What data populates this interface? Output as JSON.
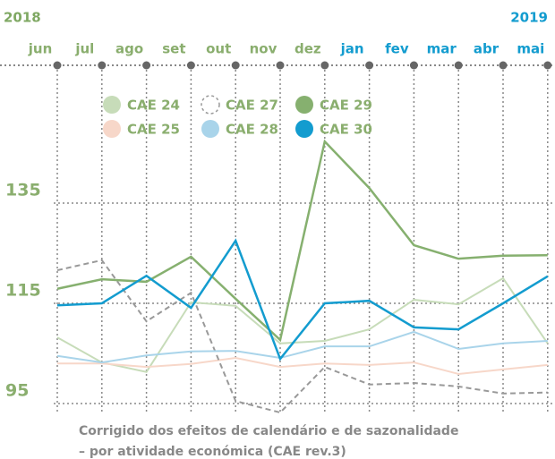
{
  "chart_data": {
    "type": "line",
    "years": [
      {
        "label": "2018",
        "color": "#7fa863"
      },
      {
        "label": "2019",
        "color": "#139ccf"
      }
    ],
    "categories": [
      "jun",
      "jul",
      "ago",
      "set",
      "out",
      "nov",
      "dez",
      "jan",
      "fev",
      "mar",
      "abr",
      "mai"
    ],
    "category_colors": [
      "#8aae6e",
      "#8aae6e",
      "#8aae6e",
      "#8aae6e",
      "#8aae6e",
      "#8aae6e",
      "#8aae6e",
      "#139ccf",
      "#139ccf",
      "#139ccf",
      "#139ccf",
      "#139ccf"
    ],
    "series": [
      {
        "name": "CAE 24",
        "color": "#c7dcb9",
        "values": [
          108.2,
          103.2,
          101.3,
          115.2,
          114.5,
          107,
          107.5,
          109.8,
          115.7,
          114.8,
          120,
          107
        ]
      },
      {
        "name": "CAE 25",
        "color": "#f7d7c9",
        "values": [
          103,
          103,
          102.3,
          102.9,
          104.1,
          102.3,
          103,
          102.7,
          103.2,
          100.9,
          101.8,
          102.7
        ]
      },
      {
        "name": "CAE 27",
        "color": "#999999",
        "dashed": true,
        "values": [
          121.6,
          123.6,
          111.4,
          117.1,
          95.5,
          93.2,
          102.3,
          98.8,
          99.1,
          98.4,
          97,
          97.2
        ]
      },
      {
        "name": "CAE 28",
        "color": "#a9d4ea",
        "values": [
          104.5,
          103.2,
          104.6,
          105.4,
          105.5,
          104.1,
          106.4,
          106.4,
          109.3,
          105.9,
          107,
          107.5
        ]
      },
      {
        "name": "CAE 29",
        "color": "#86b06f",
        "values": [
          117.9,
          119.8,
          119.3,
          124.3,
          115.9,
          107.7,
          147.3,
          138,
          126.6,
          123.9,
          124.5,
          124.6
        ]
      },
      {
        "name": "CAE 30",
        "color": "#139ccf",
        "values": [
          114.6,
          115,
          120.5,
          114.1,
          127.5,
          103.9,
          115,
          115.5,
          110.2,
          109.8,
          115,
          120.4
        ]
      }
    ],
    "ylim": [
      92,
      161
    ],
    "yticks": [
      95,
      115,
      135
    ],
    "grid": true,
    "note": [
      "Corrigido dos efeitos de calendário e de sazonalidade",
      "– por atividade económica (CAE rev.3)"
    ]
  }
}
